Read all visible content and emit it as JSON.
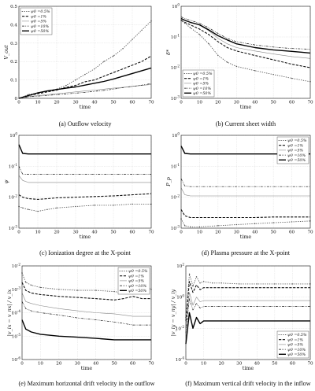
{
  "legend_labels": [
    "ψ0 =0.5%",
    "ψ0 =1%",
    "ψ0 =5%",
    "ψ0 =10%",
    "ψ0 =50%"
  ],
  "chart_data": [
    {
      "type": "line",
      "caption": "(a) Outflow velocity",
      "xlabel": "time",
      "ylabel": "V_out",
      "xlim": [
        0,
        70
      ],
      "ylim": [
        0,
        0.5
      ],
      "xticks": [
        "0",
        "10",
        "20",
        "30",
        "40",
        "50",
        "60",
        "70"
      ],
      "yticks": [
        "0",
        "0.1",
        "0.2",
        "0.3",
        "0.4",
        "0.5"
      ],
      "yscale": "linear",
      "grid": true,
      "legend": "top-left",
      "x": [
        0,
        5,
        10,
        15,
        20,
        25,
        30,
        35,
        40,
        45,
        50,
        55,
        60,
        65,
        70
      ],
      "series": [
        {
          "name": "ψ0 =0.5%",
          "values": [
            0,
            0.02,
            0.03,
            0.04,
            0.05,
            0.07,
            0.1,
            0.13,
            0.16,
            0.2,
            0.23,
            0.27,
            0.32,
            0.37,
            0.42
          ]
        },
        {
          "name": "ψ0 =1%",
          "values": [
            0,
            0.015,
            0.025,
            0.035,
            0.045,
            0.06,
            0.07,
            0.09,
            0.1,
            0.12,
            0.14,
            0.16,
            0.18,
            0.2,
            0.23
          ]
        },
        {
          "name": "ψ0 =5%",
          "values": [
            0,
            0.01,
            0.015,
            0.02,
            0.025,
            0.03,
            0.035,
            0.04,
            0.045,
            0.05,
            0.055,
            0.06,
            0.065,
            0.07,
            0.075
          ]
        },
        {
          "name": "ψ0 =10%",
          "values": [
            0,
            0.008,
            0.012,
            0.016,
            0.02,
            0.024,
            0.028,
            0.033,
            0.038,
            0.043,
            0.05,
            0.058,
            0.065,
            0.072,
            0.08
          ]
        },
        {
          "name": "ψ0 =50%",
          "values": [
            0,
            0.015,
            0.03,
            0.04,
            0.048,
            0.055,
            0.062,
            0.072,
            0.082,
            0.092,
            0.105,
            0.12,
            0.135,
            0.15,
            0.165
          ]
        }
      ]
    },
    {
      "type": "line",
      "caption": "(b) Current sheet width",
      "xlabel": "time",
      "ylabel": "δ*",
      "xlim": [
        0,
        70
      ],
      "ylim": [
        0.001,
        1
      ],
      "xticks": [
        "0",
        "10",
        "20",
        "30",
        "40",
        "50",
        "60",
        "70"
      ],
      "yticks": [
        "10-3",
        "10-2",
        "10-1",
        "100"
      ],
      "yscale": "log",
      "grid": true,
      "legend": "bottom-left",
      "x": [
        0,
        2,
        5,
        10,
        15,
        20,
        25,
        30,
        40,
        50,
        60,
        70
      ],
      "series": [
        {
          "name": "ψ0 =0.5%",
          "values": [
            0.35,
            0.28,
            0.2,
            0.12,
            0.06,
            0.025,
            0.015,
            0.011,
            0.008,
            0.006,
            0.0045,
            0.0035
          ]
        },
        {
          "name": "ψ0 =1%",
          "values": [
            0.35,
            0.3,
            0.25,
            0.18,
            0.12,
            0.07,
            0.045,
            0.035,
            0.025,
            0.018,
            0.013,
            0.01
          ]
        },
        {
          "name": "ψ0 =5%",
          "values": [
            0.4,
            0.35,
            0.3,
            0.24,
            0.16,
            0.09,
            0.06,
            0.045,
            0.035,
            0.028,
            0.023,
            0.02
          ]
        },
        {
          "name": "ψ0 =10%",
          "values": [
            0.45,
            0.4,
            0.35,
            0.28,
            0.2,
            0.13,
            0.09,
            0.07,
            0.055,
            0.047,
            0.042,
            0.04
          ]
        },
        {
          "name": "ψ0 =50%",
          "values": [
            0.4,
            0.35,
            0.3,
            0.25,
            0.17,
            0.11,
            0.08,
            0.06,
            0.045,
            0.038,
            0.034,
            0.03
          ]
        }
      ]
    },
    {
      "type": "line",
      "caption": "(c) Ionization degree at the X-point",
      "xlabel": "time",
      "ylabel": "ψ",
      "xlim": [
        0,
        70
      ],
      "ylim": [
        0.001,
        1
      ],
      "xticks": [
        "0",
        "10",
        "20",
        "30",
        "40",
        "50",
        "60",
        "70"
      ],
      "yticks": [
        "10-3",
        "10-2",
        "10-1",
        "100"
      ],
      "yscale": "log",
      "grid": true,
      "legend": "none",
      "x": [
        0,
        2,
        5,
        10,
        15,
        20,
        30,
        40,
        50,
        60,
        70
      ],
      "series": [
        {
          "name": "ψ0 =0.5%",
          "values": [
            0.005,
            0.0045,
            0.004,
            0.0035,
            0.004,
            0.0045,
            0.005,
            0.0055,
            0.0055,
            0.006,
            0.006
          ]
        },
        {
          "name": "ψ0 =1%",
          "values": [
            0.012,
            0.01,
            0.009,
            0.0085,
            0.009,
            0.0095,
            0.01,
            0.0105,
            0.011,
            0.012,
            0.013
          ]
        },
        {
          "name": "ψ0 =5%",
          "values": [
            0.05,
            0.035,
            0.03,
            0.03,
            0.03,
            0.03,
            0.03,
            0.03,
            0.03,
            0.03,
            0.03
          ]
        },
        {
          "name": "ψ0 =10%",
          "values": [
            0.1,
            0.055,
            0.055,
            0.055,
            0.055,
            0.055,
            0.055,
            0.055,
            0.055,
            0.055,
            0.055
          ]
        },
        {
          "name": "ψ0 =50%",
          "values": [
            0.5,
            0.26,
            0.25,
            0.25,
            0.25,
            0.25,
            0.25,
            0.25,
            0.25,
            0.25,
            0.25
          ]
        }
      ]
    },
    {
      "type": "line",
      "caption": "(d) Plasma pressure at the X-point",
      "xlabel": "time",
      "ylabel": "P_p",
      "xlim": [
        0,
        70
      ],
      "ylim": [
        0.001,
        1
      ],
      "xticks": [
        "0",
        "10",
        "20",
        "30",
        "40",
        "50",
        "60",
        "70"
      ],
      "yticks": [
        "10-3",
        "10-2",
        "10-1",
        "100"
      ],
      "yscale": "log",
      "grid": true,
      "legend": "top-right",
      "x": [
        0,
        2,
        5,
        10,
        20,
        30,
        40,
        50,
        60,
        70
      ],
      "series": [
        {
          "name": "ψ0 =0.5%",
          "values": [
            0.002,
            0.0012,
            0.0011,
            0.0011,
            0.0012,
            0.0013,
            0.0014,
            0.0015,
            0.0016,
            0.0017
          ]
        },
        {
          "name": "ψ0 =1%",
          "values": [
            0.004,
            0.0025,
            0.0022,
            0.0022,
            0.0022,
            0.0022,
            0.0022,
            0.0023,
            0.0023,
            0.0023
          ]
        },
        {
          "name": "ψ0 =5%",
          "values": [
            0.02,
            0.012,
            0.011,
            0.011,
            0.011,
            0.011,
            0.011,
            0.011,
            0.011,
            0.011
          ]
        },
        {
          "name": "ψ0 =10%",
          "values": [
            0.04,
            0.023,
            0.022,
            0.022,
            0.022,
            0.022,
            0.022,
            0.022,
            0.022,
            0.022
          ]
        },
        {
          "name": "ψ0 =50%",
          "values": [
            0.45,
            0.26,
            0.25,
            0.25,
            0.25,
            0.25,
            0.25,
            0.25,
            0.25,
            0.25
          ]
        }
      ]
    },
    {
      "type": "line",
      "caption": "(e) Maximum horizontal drift velocity in the outflow",
      "xlabel": "time",
      "ylabel": "|v_ix − v_nx| / v_ix",
      "xlim": [
        0,
        70
      ],
      "ylim": [
        1e-06,
        0.01
      ],
      "xticks": [
        "0",
        "10",
        "20",
        "30",
        "40",
        "50",
        "60",
        "70"
      ],
      "yticks": [
        "10-6",
        "10-5",
        "10-4",
        "10-3",
        "10-2"
      ],
      "yscale": "log",
      "grid": true,
      "legend": "top-right",
      "x": [
        0,
        2,
        5,
        10,
        20,
        30,
        40,
        50,
        55,
        60,
        65,
        70
      ],
      "series": [
        {
          "name": "ψ0 =0.5%",
          "values": [
            0.005,
            0.002,
            0.0015,
            0.0012,
            0.001,
            0.0009,
            0.0009,
            0.0008,
            0.0007,
            0.002,
            0.0015,
            0.001
          ]
        },
        {
          "name": "ψ0 =1%",
          "values": [
            0.002,
            0.0009,
            0.0007,
            0.0006,
            0.0005,
            0.00045,
            0.0004,
            0.00035,
            0.0004,
            0.0005,
            0.0004,
            0.0004
          ]
        },
        {
          "name": "ψ0 =5%",
          "values": [
            0.0007,
            0.0003,
            0.00025,
            0.0002,
            0.00015,
            0.00012,
            0.0001,
            9e-05,
            8e-05,
            7e-05,
            7e-05,
            7e-05
          ]
        },
        {
          "name": "ψ0 =10%",
          "values": [
            0.0003,
            0.00015,
            0.00012,
            0.0001,
            8e-05,
            6e-05,
            5e-05,
            4e-05,
            3.5e-05,
            3e-05,
            3e-05,
            3e-05
          ]
        },
        {
          "name": "ψ0 =50%",
          "values": [
            5e-05,
            2e-05,
            1.5e-05,
            1.2e-05,
            1e-05,
            9e-06,
            8e-06,
            7e-06,
            7e-06,
            7e-06,
            7e-06,
            7e-06
          ]
        }
      ]
    },
    {
      "type": "line",
      "caption": "(f) Maximum vertical drift velocity in the inflow",
      "xlabel": "time",
      "ylabel": "|v_iy − v_ny| / v_iy",
      "xlim": [
        0,
        70
      ],
      "ylim": [
        0.0001,
        100
      ],
      "xticks": [
        "0",
        "10",
        "20",
        "30",
        "40",
        "50",
        "60",
        "70"
      ],
      "yticks": [
        "10-4",
        "10-2",
        "100",
        "102"
      ],
      "yscale": "log",
      "grid": true,
      "legend": "bottom-right",
      "x": [
        0,
        2,
        4,
        6,
        8,
        10,
        15,
        20,
        30,
        40,
        50,
        60,
        70
      ],
      "series": [
        {
          "name": "ψ0 =0.5%",
          "values": [
            0.05,
            30,
            5,
            20,
            8,
            10,
            8,
            8,
            7,
            7,
            7,
            7,
            7
          ]
        },
        {
          "name": "ψ0 =1%",
          "values": [
            0.03,
            10,
            2,
            6,
            3,
            4,
            4,
            4,
            4,
            4,
            4,
            4,
            4
          ]
        },
        {
          "name": "ψ0 =5%",
          "values": [
            0.01,
            2,
            0.3,
            1.0,
            0.5,
            0.6,
            0.6,
            0.6,
            0.6,
            0.6,
            0.6,
            0.6,
            0.6
          ]
        },
        {
          "name": "ψ0 =10%",
          "values": [
            0.005,
            0.8,
            0.15,
            0.4,
            0.2,
            0.25,
            0.25,
            0.25,
            0.25,
            0.25,
            0.25,
            0.25,
            0.25
          ]
        },
        {
          "name": "ψ0 =50%",
          "values": [
            0.001,
            0.1,
            0.01,
            0.05,
            0.02,
            0.03,
            0.03,
            0.03,
            0.03,
            0.03,
            0.03,
            0.03,
            0.03
          ]
        }
      ]
    }
  ]
}
